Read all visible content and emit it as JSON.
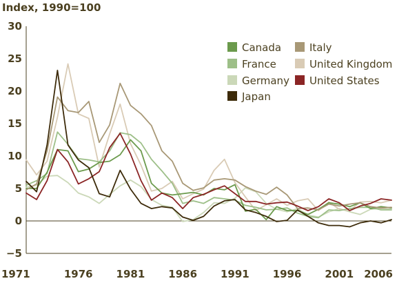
{
  "chart_data": {
    "type": "line",
    "ylabel": "Index, 1990=100",
    "xlim": [
      1971,
      2006
    ],
    "ylim": [
      -5,
      30
    ],
    "x_ticks": [
      1971,
      1976,
      1981,
      1986,
      1991,
      1996,
      2001,
      2006
    ],
    "y_ticks": [
      -5,
      0,
      5,
      10,
      15,
      20,
      25,
      30
    ],
    "x_tick_labels": [
      "1971",
      "1976",
      "1981",
      "1986",
      "1991",
      "1996",
      "2001",
      "2006"
    ],
    "y_tick_labels": [
      "−5",
      "0",
      "5",
      "10",
      "15",
      "20",
      "25",
      "30"
    ],
    "grid": false,
    "legend_position": "top-right",
    "x": [
      1971,
      1972,
      1973,
      1974,
      1975,
      1976,
      1977,
      1978,
      1979,
      1980,
      1981,
      1982,
      1983,
      1984,
      1985,
      1986,
      1987,
      1988,
      1989,
      1990,
      1991,
      1992,
      1993,
      1994,
      1995,
      1996,
      1997,
      1998,
      1999,
      2000,
      2001,
      2002,
      2003,
      2004,
      2005,
      2006
    ],
    "series": [
      {
        "name": "Canada",
        "color": "#6b9a4c",
        "values": [
          5.0,
          5.0,
          7.5,
          11.0,
          10.8,
          7.6,
          8.0,
          9.0,
          9.2,
          10.2,
          12.5,
          10.8,
          5.8,
          4.3,
          4.0,
          4.2,
          4.4,
          4.0,
          5.0,
          4.8,
          5.6,
          1.5,
          1.8,
          0.2,
          2.2,
          1.6,
          1.6,
          1.0,
          1.8,
          2.8,
          2.6,
          2.2,
          2.8,
          1.9,
          2.2,
          2.0
        ]
      },
      {
        "name": "France",
        "color": "#9dbf88",
        "values": [
          5.5,
          6.2,
          7.3,
          13.7,
          11.8,
          9.6,
          9.4,
          9.1,
          10.8,
          13.6,
          13.3,
          12.0,
          9.5,
          7.7,
          5.8,
          2.7,
          3.1,
          2.7,
          3.6,
          3.4,
          3.2,
          2.4,
          2.1,
          1.7,
          1.8,
          2.0,
          1.2,
          0.7,
          0.5,
          1.7,
          1.6,
          1.9,
          2.1,
          2.1,
          1.7,
          1.7
        ]
      },
      {
        "name": "Germany",
        "color": "#cbd8b8",
        "values": [
          5.2,
          5.5,
          6.9,
          7.0,
          5.9,
          4.3,
          3.7,
          2.7,
          4.1,
          5.4,
          6.3,
          5.3,
          3.3,
          2.4,
          2.1,
          -0.1,
          0.2,
          1.3,
          2.8,
          2.7,
          3.5,
          5.1,
          4.5,
          2.7,
          1.8,
          1.4,
          1.9,
          0.9,
          0.6,
          1.4,
          1.9,
          1.4,
          1.0,
          1.8,
          1.9,
          1.8
        ]
      },
      {
        "name": "Japan",
        "color": "#3d2b0a",
        "values": [
          6.1,
          4.5,
          11.7,
          23.2,
          11.7,
          9.4,
          8.2,
          4.2,
          3.7,
          7.8,
          4.9,
          2.7,
          1.9,
          2.2,
          2.0,
          0.6,
          0.1,
          0.7,
          2.3,
          3.1,
          3.3,
          1.7,
          1.3,
          0.7,
          -0.1,
          0.1,
          1.7,
          0.7,
          -0.3,
          -0.7,
          -0.7,
          -0.9,
          -0.3,
          0.0,
          -0.3,
          0.2
        ]
      },
      {
        "name": "Italy",
        "color": "#a89876",
        "values": [
          4.8,
          5.7,
          10.8,
          19.1,
          17.0,
          16.7,
          18.4,
          12.1,
          14.8,
          21.2,
          17.8,
          16.5,
          14.7,
          10.8,
          9.2,
          5.8,
          4.7,
          5.1,
          6.3,
          6.5,
          6.3,
          5.3,
          4.6,
          4.1,
          5.2,
          4.0,
          1.9,
          2.0,
          1.7,
          2.6,
          2.3,
          2.6,
          2.8,
          2.2,
          2.0,
          2.1
        ]
      },
      {
        "name": "United Kingdom",
        "color": "#d9cbb5",
        "values": [
          9.4,
          7.1,
          9.2,
          16.0,
          24.2,
          16.5,
          15.8,
          8.3,
          13.4,
          18.0,
          11.9,
          8.6,
          4.6,
          5.0,
          6.1,
          3.4,
          4.2,
          4.9,
          7.8,
          9.5,
          5.9,
          3.7,
          1.6,
          2.5,
          3.4,
          2.4,
          3.1,
          3.4,
          1.6,
          2.9,
          1.8,
          1.6,
          2.9,
          3.0,
          2.8,
          3.2
        ]
      },
      {
        "name": "United States",
        "color": "#8b2525",
        "values": [
          4.3,
          3.3,
          6.2,
          11.0,
          9.1,
          5.7,
          6.5,
          7.6,
          11.3,
          13.5,
          10.3,
          6.2,
          3.2,
          4.3,
          3.6,
          1.9,
          3.6,
          4.1,
          4.8,
          5.4,
          4.2,
          3.0,
          3.0,
          2.6,
          2.8,
          2.9,
          2.3,
          1.6,
          2.2,
          3.4,
          2.8,
          1.6,
          2.3,
          2.7,
          3.4,
          3.2
        ]
      }
    ]
  }
}
